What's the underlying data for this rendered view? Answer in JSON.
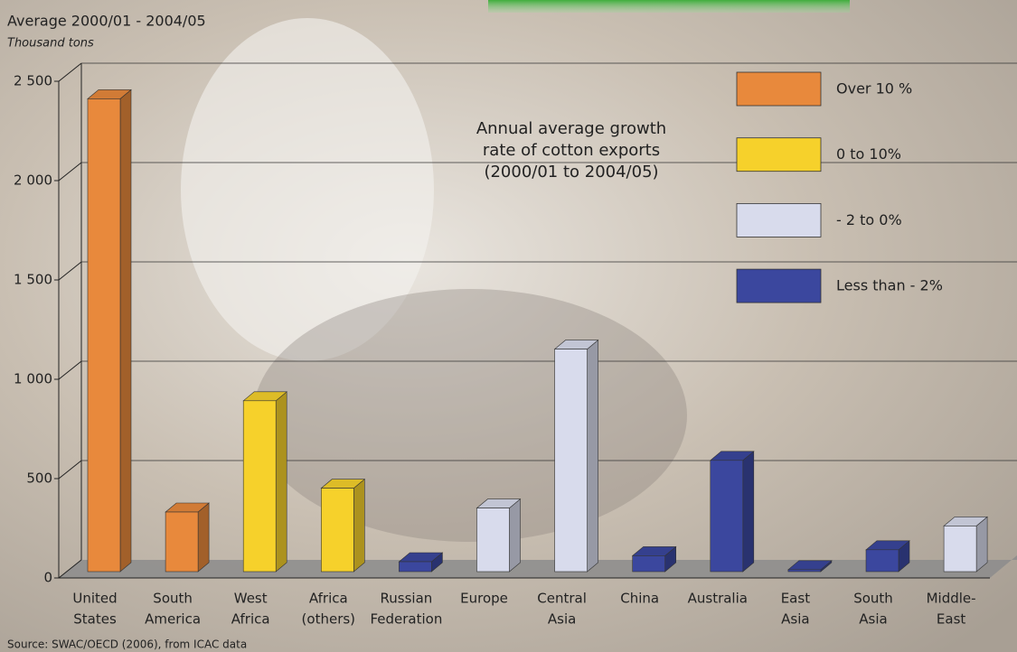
{
  "chart_data": {
    "type": "bar3d",
    "title": "Average 2000/01 - 2004/05",
    "subtitle": "Thousand tons",
    "annotation": [
      "Annual average growth",
      "rate of cotton exports",
      "(2000/01 to 2004/05)"
    ],
    "source": "Source: SWAC/OECD (2006), from ICAC data",
    "categories": [
      [
        "United",
        "States"
      ],
      [
        "South",
        "America"
      ],
      [
        "West",
        "Africa"
      ],
      [
        "Africa",
        "(others)"
      ],
      [
        "Russian",
        "Federation"
      ],
      [
        "Europe"
      ],
      [
        "Central",
        "Asia"
      ],
      [
        "China"
      ],
      [
        "Australia"
      ],
      [
        "East",
        "Asia"
      ],
      [
        "South",
        "Asia"
      ],
      [
        "Middle-",
        "East"
      ]
    ],
    "series": [
      {
        "name": "Over 10 %",
        "color": "#e8893c",
        "values": [
          2380,
          300,
          null,
          null,
          null,
          null,
          null,
          null,
          null,
          null,
          null,
          null
        ]
      },
      {
        "name": "0 to 10%",
        "color": "#f6d12b",
        "values": [
          null,
          null,
          860,
          420,
          null,
          null,
          null,
          null,
          null,
          null,
          null,
          null
        ]
      },
      {
        "name": "- 2 to 0%",
        "color": "#d8dbec",
        "values": [
          null,
          null,
          null,
          null,
          null,
          320,
          1120,
          null,
          null,
          null,
          null,
          230
        ]
      },
      {
        "name": "Less than - 2%",
        "color": "#3b479e",
        "values": [
          null,
          null,
          null,
          null,
          50,
          null,
          null,
          80,
          560,
          10,
          110,
          null
        ]
      }
    ],
    "ylim": [
      0,
      2500
    ],
    "yticks": [
      0,
      500,
      {
        "value": 1000,
        "label": "1 000"
      },
      {
        "value": 1500,
        "label": "1 500"
      },
      {
        "value": 2000,
        "label": "2 000"
      },
      {
        "value": 2500,
        "label": "2 500"
      }
    ],
    "grid": true,
    "legend": "top-right"
  }
}
